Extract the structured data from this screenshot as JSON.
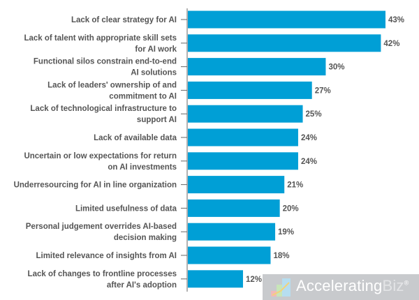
{
  "chart_data": {
    "type": "bar",
    "orientation": "horizontal",
    "title": "",
    "xlabel": "",
    "ylabel": "",
    "xlim": [
      0,
      43
    ],
    "grid": false,
    "bar_color": "#009fd6",
    "categories": [
      [
        "Lack of clear strategy for AI"
      ],
      [
        "Lack of talent with appropriate skill sets",
        "for AI work"
      ],
      [
        "Functional silos constrain end-to-end",
        "AI solutions"
      ],
      [
        "Lack of leaders' ownership of and",
        "commitment to AI"
      ],
      [
        "Lack of technological infrastructure to",
        "support AI"
      ],
      [
        "Lack of available data"
      ],
      [
        "Uncertain or low expectations for return",
        "on AI investments"
      ],
      [
        "Underresourcing for AI in line organization"
      ],
      [
        "Limited usefulness of data"
      ],
      [
        "Personal judgement overrides AI-based",
        "decision making"
      ],
      [
        "Limited relevance of insights from AI"
      ],
      [
        "Lack of changes to frontline processes",
        "after AI's adoption"
      ]
    ],
    "values": [
      43,
      42,
      30,
      27,
      25,
      24,
      24,
      21,
      20,
      19,
      18,
      12
    ],
    "value_labels": [
      "43%",
      "42%",
      "30%",
      "27%",
      "25%",
      "24%",
      "24%",
      "21%",
      "20%",
      "19%",
      "18%",
      "12%"
    ]
  },
  "watermark": {
    "text_main": "Accelerating",
    "text_accent": "Biz",
    "mark": "®"
  }
}
